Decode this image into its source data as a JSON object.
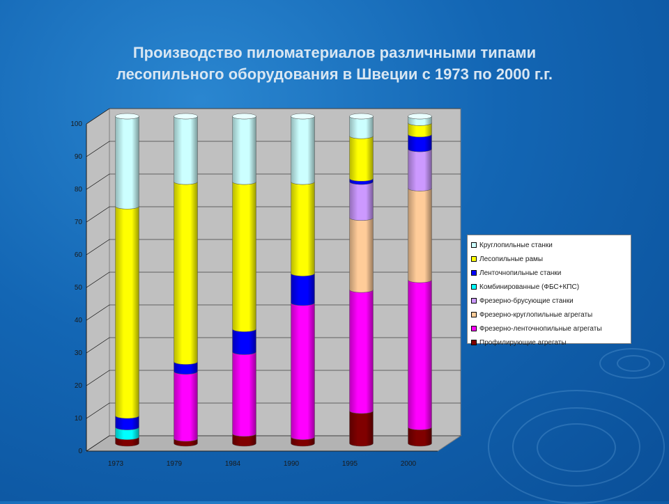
{
  "title_lines": [
    "Производство пиломатериалов различными типами",
    "лесопильного оборудования в Швеции с 1973 по 2000 г.г."
  ],
  "chart_data": {
    "type": "bar",
    "stacked": true,
    "categories": [
      "1973",
      "1979",
      "1984",
      "1990",
      "1995",
      "2000"
    ],
    "ylim": [
      0,
      100
    ],
    "yticks": [
      0,
      10,
      20,
      30,
      40,
      50,
      60,
      70,
      80,
      90,
      100
    ],
    "grid": true,
    "legend_position": "right",
    "series": [
      {
        "name": "Профилирующие агрегаты",
        "color": "#800000",
        "values": [
          2,
          1.5,
          3,
          2,
          10,
          5
        ]
      },
      {
        "name": "Фрезерно-ленточнопильные агрегаты",
        "color": "#ff00ff",
        "values": [
          0,
          20.5,
          25,
          41,
          37,
          45
        ]
      },
      {
        "name": "Фрезерно-круглопильные агрегаты",
        "color": "#ffcc99",
        "values": [
          0,
          0,
          0,
          0,
          22,
          28
        ]
      },
      {
        "name": "Фрезерно-брусующие станки",
        "color": "#cc99ff",
        "values": [
          0,
          0,
          0,
          0,
          11,
          12
        ]
      },
      {
        "name": "Комбинированные (ФБС+КПС)",
        "color": "#00ffff",
        "values": [
          3,
          0,
          0,
          0,
          0,
          0
        ]
      },
      {
        "name": "Ленточнопильные станки",
        "color": "#0000ff",
        "values": [
          3.5,
          3,
          7,
          9,
          1,
          4.5
        ]
      },
      {
        "name": "Лесопильные рамы",
        "color": "#ffff00",
        "values": [
          64,
          55,
          45,
          28,
          13,
          3.5
        ]
      },
      {
        "name": "Круглопильные станки",
        "color": "#ccffff",
        "values": [
          27.5,
          20,
          20,
          20,
          6,
          2
        ]
      }
    ],
    "legend_order": [
      7,
      6,
      5,
      4,
      3,
      2,
      1,
      0
    ]
  }
}
